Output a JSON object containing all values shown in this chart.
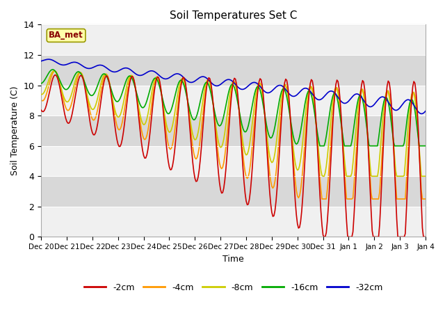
{
  "title": "Soil Temperatures Set C",
  "xlabel": "Time",
  "ylabel": "Soil Temperature (C)",
  "ylim": [
    0,
    14
  ],
  "yticks": [
    0,
    2,
    4,
    6,
    8,
    10,
    12,
    14
  ],
  "label_box_text": "BA_met",
  "series_labels": [
    "-2cm",
    "-4cm",
    "-8cm",
    "-16cm",
    "-32cm"
  ],
  "series_colors": [
    "#cc0000",
    "#ff9900",
    "#cccc00",
    "#00aa00",
    "#0000cc"
  ],
  "line_width": 1.2,
  "bg_color": "#ffffff",
  "plot_bg_color": "#d8d8d8",
  "band_color": "#f0f0f0",
  "num_days": 15
}
